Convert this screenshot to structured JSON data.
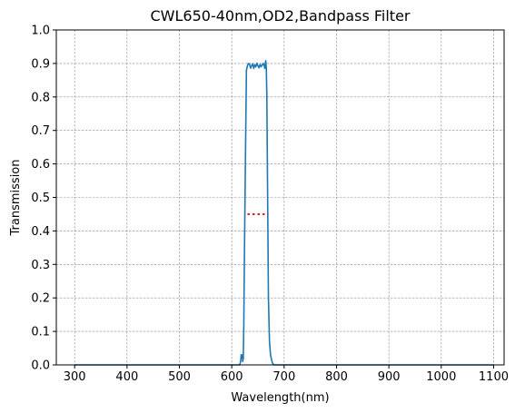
{
  "chart_data": {
    "type": "line",
    "title": "CWL650-40nm,OD2,Bandpass Filter",
    "xlabel": "Wavelength(nm)",
    "ylabel": "Transmission",
    "xlim": [
      265,
      1120
    ],
    "ylim": [
      0.0,
      1.0
    ],
    "xticks": [
      300,
      400,
      500,
      600,
      700,
      800,
      900,
      1000,
      1100
    ],
    "xtick_labels": [
      "300",
      "400",
      "500",
      "600",
      "700",
      "800",
      "900",
      "1000",
      "1100"
    ],
    "yticks": [
      0.0,
      0.1,
      0.2,
      0.3,
      0.4,
      0.5,
      0.6,
      0.7,
      0.8,
      0.9,
      1.0
    ],
    "ytick_labels": [
      "0.0",
      "0.1",
      "0.2",
      "0.3",
      "0.4",
      "0.5",
      "0.6",
      "0.7",
      "0.8",
      "0.9",
      "1.0"
    ],
    "grid": true,
    "grid_style": "dashed",
    "series": [
      {
        "color": "#1f77b4",
        "x": [
          300,
          600,
          615,
          617,
          618,
          619,
          620,
          621,
          622,
          623,
          624,
          626,
          628,
          630,
          631,
          632,
          634,
          636,
          638,
          640,
          642,
          644,
          646,
          648,
          650,
          652,
          654,
          656,
          658,
          660,
          662,
          663,
          664,
          665,
          666,
          667,
          668,
          669,
          670,
          672,
          674,
          676,
          678,
          680,
          682,
          684,
          700,
          800,
          900,
          1000,
          1100
        ],
        "y": [
          0.0,
          0.0,
          0.0,
          0.01,
          0.03,
          0.02,
          0.03,
          0.01,
          0.02,
          0.12,
          0.3,
          0.6,
          0.88,
          0.893,
          0.897,
          0.9,
          0.898,
          0.886,
          0.893,
          0.899,
          0.885,
          0.896,
          0.89,
          0.901,
          0.893,
          0.887,
          0.897,
          0.89,
          0.895,
          0.9,
          0.893,
          0.885,
          0.9,
          0.908,
          0.884,
          0.8,
          0.6,
          0.4,
          0.2,
          0.07,
          0.03,
          0.015,
          0.005,
          0.0,
          0.0,
          0.0,
          0.0,
          0.0,
          0.0,
          0.0,
          0.0
        ]
      }
    ],
    "annotation": {
      "color": "#d62728",
      "style": "dotted",
      "x": [
        630,
        670
      ],
      "y": 0.45
    }
  }
}
